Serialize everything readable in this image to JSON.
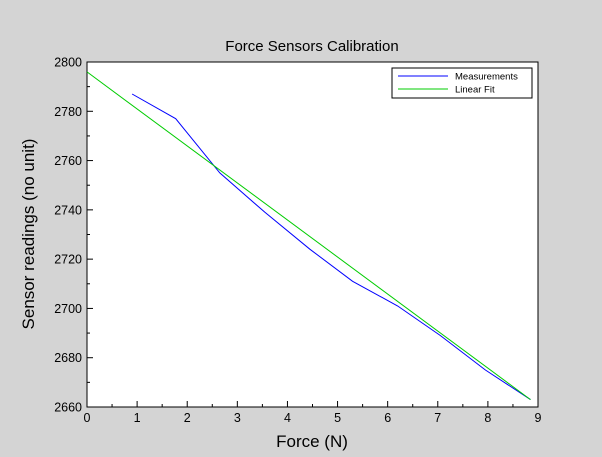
{
  "chart_data": {
    "type": "line",
    "title": "Force Sensors Calibration",
    "xlabel": "Force (N)",
    "ylabel": "Sensor readings (no unit)",
    "xlim": [
      0,
      9
    ],
    "ylim": [
      2660,
      2800
    ],
    "x_ticks": [
      0,
      1,
      2,
      3,
      4,
      5,
      6,
      7,
      8,
      9
    ],
    "y_ticks": [
      2660,
      2680,
      2700,
      2720,
      2740,
      2760,
      2780,
      2800
    ],
    "grid": false,
    "legend_position": "top-right",
    "series": [
      {
        "name": "Measurements",
        "color": "#0000ff",
        "x": [
          0.9,
          1.77,
          2.65,
          3.55,
          4.45,
          5.3,
          6.2,
          7.05,
          7.95,
          8.85
        ],
        "y": [
          2787,
          2777,
          2755,
          2739,
          2724,
          2711,
          2701,
          2689,
          2675,
          2663
        ]
      },
      {
        "name": "Linear Fit",
        "color": "#00cc00",
        "x": [
          0,
          8.85
        ],
        "y": [
          2796,
          2663
        ]
      }
    ]
  }
}
